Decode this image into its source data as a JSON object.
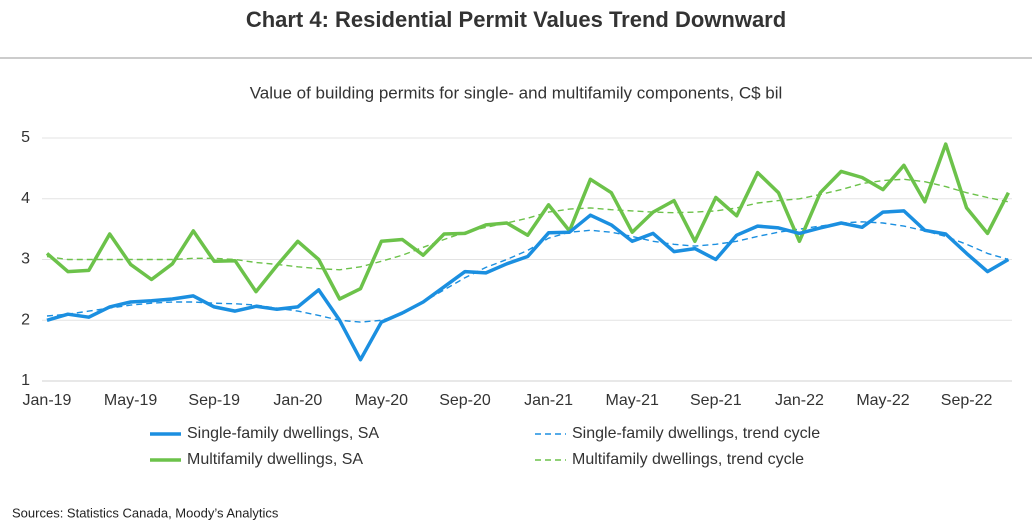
{
  "chart_data": {
    "type": "line",
    "title": "Chart 4: Residential Permit Values Trend Downward",
    "subtitle": "Value of building permits for single- and multifamily components, C$ bil",
    "source": "Sources: Statistics Canada, Moody’s Analytics",
    "categories": [
      "Jan-19",
      null,
      null,
      null,
      "May-19",
      null,
      null,
      null,
      "Sep-19",
      null,
      null,
      null,
      "Jan-20",
      null,
      null,
      null,
      "May-20",
      null,
      null,
      null,
      "Sep-20",
      null,
      null,
      null,
      "Jan-21",
      null,
      null,
      null,
      "May-21",
      null,
      null,
      null,
      "Sep-21",
      null,
      null,
      null,
      "Jan-22",
      null,
      null,
      null,
      "May-22",
      null,
      null,
      null,
      "Sep-22",
      null,
      null
    ],
    "ylim": [
      1,
      5
    ],
    "yticks": [
      1,
      2,
      3,
      4,
      5
    ],
    "grid": true,
    "series": [
      {
        "name": "Single-family dwellings, SA",
        "color": "#1b8fe0",
        "style": "solid",
        "values": [
          2.0,
          2.1,
          2.05,
          2.22,
          2.3,
          2.32,
          2.35,
          2.4,
          2.22,
          2.15,
          2.23,
          2.18,
          2.22,
          2.5,
          2.0,
          1.35,
          1.97,
          2.12,
          2.3,
          2.55,
          2.8,
          2.78,
          2.93,
          3.05,
          3.44,
          3.45,
          3.73,
          3.57,
          3.3,
          3.43,
          3.13,
          3.18,
          3.0,
          3.4,
          3.55,
          3.52,
          3.43,
          3.52,
          3.6,
          3.53,
          3.78,
          3.8,
          3.48,
          3.42,
          3.1,
          2.8,
          3.0
        ]
      },
      {
        "name": "Single-family dwellings, trend cycle",
        "color": "#1b8fe0",
        "style": "dashed",
        "values": [
          2.07,
          2.1,
          2.15,
          2.2,
          2.25,
          2.28,
          2.3,
          2.3,
          2.28,
          2.27,
          2.25,
          2.2,
          2.15,
          2.08,
          2.0,
          1.97,
          2.0,
          2.1,
          2.3,
          2.5,
          2.7,
          2.87,
          3.0,
          3.15,
          3.35,
          3.45,
          3.48,
          3.45,
          3.38,
          3.3,
          3.25,
          3.22,
          3.25,
          3.3,
          3.38,
          3.45,
          3.5,
          3.55,
          3.6,
          3.62,
          3.6,
          3.55,
          3.47,
          3.38,
          3.25,
          3.1,
          3.0
        ]
      },
      {
        "name": "Multifamily dwellings, SA",
        "color": "#6cc24a",
        "style": "solid",
        "values": [
          3.1,
          2.8,
          2.82,
          3.42,
          2.92,
          2.67,
          2.93,
          3.47,
          2.97,
          2.98,
          2.47,
          2.9,
          3.3,
          3.0,
          2.35,
          2.52,
          3.3,
          3.33,
          3.07,
          3.42,
          3.43,
          3.57,
          3.6,
          3.4,
          3.9,
          3.47,
          4.32,
          4.1,
          3.45,
          3.78,
          3.97,
          3.3,
          4.02,
          3.72,
          4.43,
          4.1,
          3.3,
          4.1,
          4.45,
          4.35,
          4.15,
          4.55,
          3.95,
          4.9,
          3.85,
          3.43,
          4.1
        ]
      },
      {
        "name": "Multifamily dwellings, trend cycle",
        "color": "#6cc24a",
        "style": "dashed",
        "values": [
          3.05,
          3.0,
          3.0,
          3.0,
          3.0,
          3.0,
          3.0,
          3.02,
          3.02,
          3.0,
          2.95,
          2.92,
          2.88,
          2.85,
          2.83,
          2.88,
          2.97,
          3.07,
          3.2,
          3.33,
          3.45,
          3.53,
          3.6,
          3.68,
          3.78,
          3.83,
          3.85,
          3.82,
          3.8,
          3.78,
          3.77,
          3.78,
          3.8,
          3.85,
          3.93,
          3.97,
          4.0,
          4.07,
          4.15,
          4.25,
          4.3,
          4.32,
          4.28,
          4.2,
          4.1,
          4.02,
          3.95
        ]
      }
    ]
  }
}
